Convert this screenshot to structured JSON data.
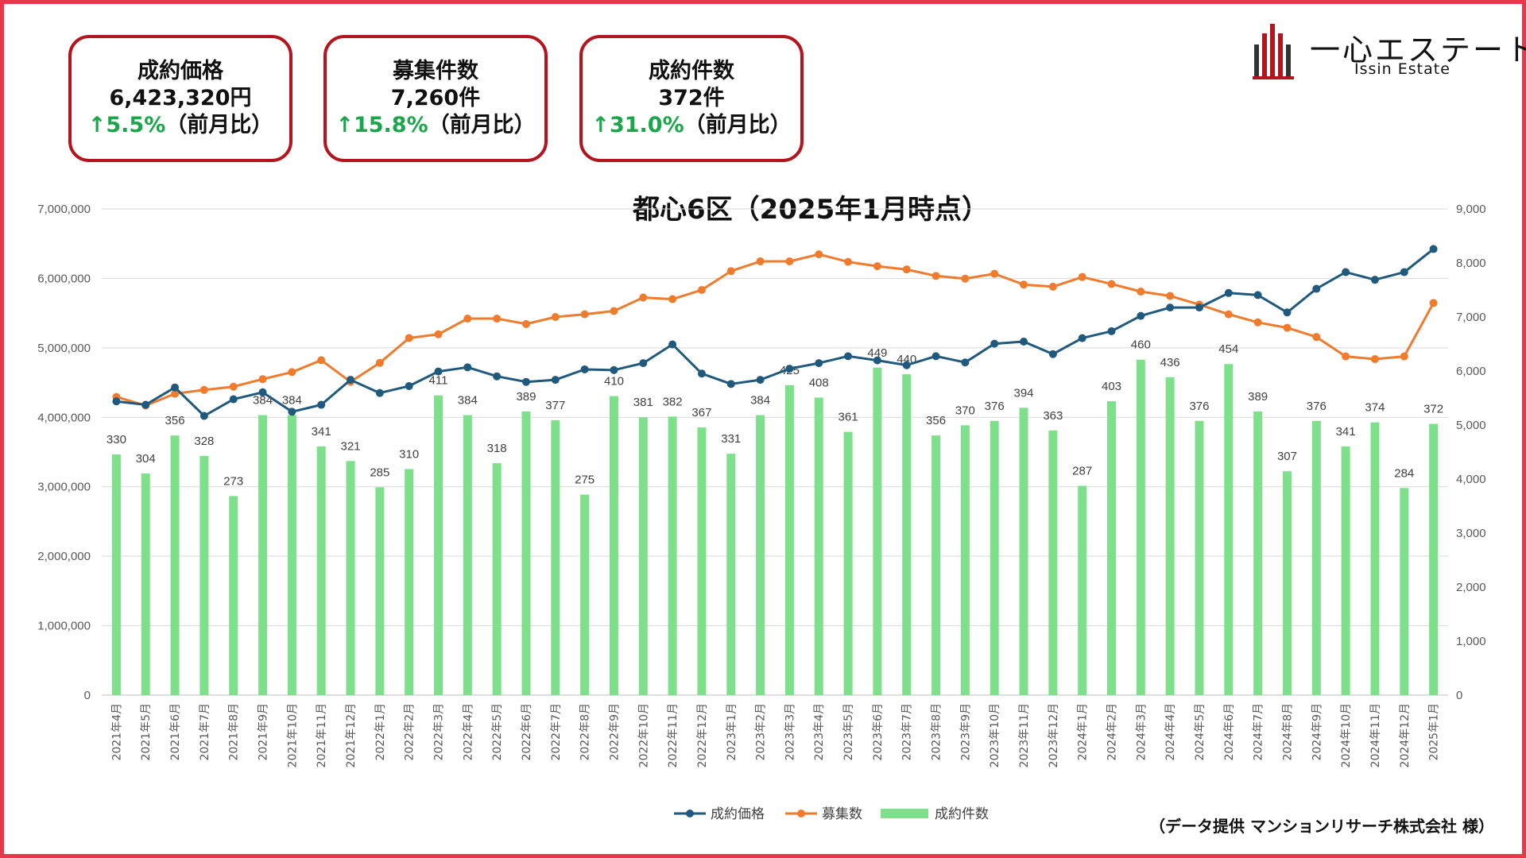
{
  "kpis": [
    {
      "title": "成約価格",
      "value": "6,423,320円",
      "change_arrow": "↑",
      "change_value": "5.5%",
      "change_suffix": "（前月比）"
    },
    {
      "title": "募集件数",
      "value": "7,260件",
      "change_arrow": "↑",
      "change_value": "15.8%",
      "change_suffix": "（前月比）"
    },
    {
      "title": "成約件数",
      "value": "372件",
      "change_arrow": "↑",
      "change_value": "31.0%",
      "change_suffix": "（前月比）"
    }
  ],
  "logo": {
    "name_jp": "一心エステート",
    "name_en": "Issin Estate",
    "icon": "building-bars-icon"
  },
  "credit": "（データ提供 マンションリサーチ株式会社 様）",
  "colors": {
    "price": "#1f5a7e",
    "listings": "#f07b2d",
    "contracts": "#7ee08b",
    "accent": "#b3141e",
    "up": "#1aa64a"
  },
  "chart_data": {
    "type": "bar",
    "title": "都心6区（2025年1月時点）",
    "categories": [
      "2021年4月",
      "2021年5月",
      "2021年6月",
      "2021年7月",
      "2021年8月",
      "2021年9月",
      "2021年10月",
      "2021年11月",
      "2021年12月",
      "2022年1月",
      "2022年2月",
      "2022年3月",
      "2022年4月",
      "2022年5月",
      "2022年6月",
      "2022年7月",
      "2022年8月",
      "2022年9月",
      "2022年10月",
      "2022年11月",
      "2022年12月",
      "2023年1月",
      "2023年2月",
      "2023年3月",
      "2023年4月",
      "2023年5月",
      "2023年6月",
      "2023年7月",
      "2023年8月",
      "2023年9月",
      "2023年10月",
      "2023年11月",
      "2023年12月",
      "2024年1月",
      "2024年2月",
      "2024年3月",
      "2024年4月",
      "2024年5月",
      "2024年6月",
      "2024年7月",
      "2024年8月",
      "2024年9月",
      "2024年10月",
      "2024年11月",
      "2024年12月",
      "2025年1月"
    ],
    "left_axis": {
      "min": 0,
      "max": 7000000,
      "step": 1000000,
      "tick_labels": [
        "0",
        "1,000,000",
        "2,000,000",
        "3,000,000",
        "4,000,000",
        "5,000,000",
        "6,000,000",
        "7,000,000"
      ]
    },
    "right_axis": {
      "min": 0,
      "max": 9000,
      "step": 1000,
      "tick_labels": [
        "0",
        "1,000",
        "2,000",
        "3,000",
        "4,000",
        "5,000",
        "6,000",
        "7,000",
        "8,000",
        "9,000"
      ]
    },
    "grid": true,
    "legend_position": "bottom",
    "series": [
      {
        "name": "成約価格",
        "kind": "line",
        "axis": "left",
        "color": "#1f5a7e",
        "values": [
          4230000,
          4180000,
          4430000,
          4020000,
          4260000,
          4360000,
          4080000,
          4180000,
          4540000,
          4350000,
          4450000,
          4660000,
          4720000,
          4590000,
          4510000,
          4540000,
          4690000,
          4680000,
          4780000,
          5050000,
          4630000,
          4480000,
          4540000,
          4700000,
          4780000,
          4880000,
          4820000,
          4750000,
          4880000,
          4790000,
          5060000,
          5090000,
          4910000,
          5140000,
          5240000,
          5460000,
          5580000,
          5580000,
          5790000,
          5760000,
          5510000,
          5850000,
          6090000,
          5980000,
          6090000,
          6423320
        ]
      },
      {
        "name": "募集数",
        "kind": "line",
        "axis": "right",
        "color": "#f07b2d",
        "values": [
          5520,
          5360,
          5580,
          5650,
          5710,
          5850,
          5980,
          6200,
          5800,
          6150,
          6610,
          6680,
          6970,
          6970,
          6870,
          7000,
          7050,
          7110,
          7360,
          7330,
          7500,
          7850,
          8030,
          8030,
          8160,
          8020,
          7940,
          7880,
          7760,
          7710,
          7800,
          7600,
          7560,
          7740,
          7610,
          7470,
          7390,
          7230,
          7050,
          6900,
          6800,
          6630,
          6270,
          6220,
          6270,
          7260
        ]
      },
      {
        "name": "成約件数",
        "kind": "bar",
        "axis": "right",
        "color": "#7ee08b",
        "values": [
          330,
          304,
          356,
          328,
          273,
          384,
          384,
          341,
          321,
          285,
          310,
          411,
          384,
          318,
          389,
          377,
          275,
          410,
          381,
          382,
          367,
          331,
          384,
          425,
          408,
          361,
          449,
          440,
          356,
          370,
          376,
          394,
          363,
          287,
          403,
          460,
          436,
          376,
          454,
          389,
          307,
          376,
          341,
          374,
          284,
          372
        ],
        "bar_scale": 13.5
      }
    ]
  }
}
